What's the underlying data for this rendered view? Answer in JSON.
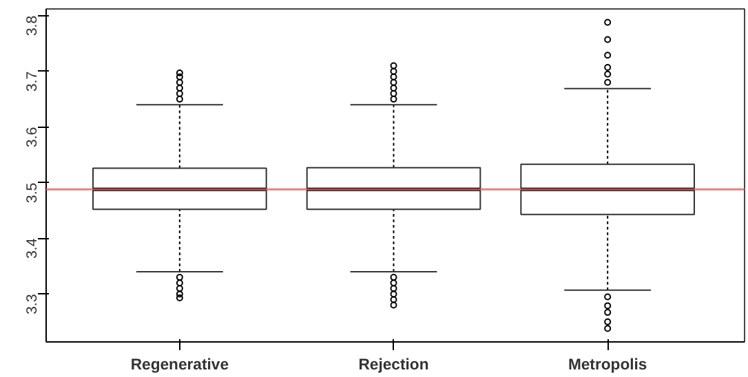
{
  "chart_data": {
    "type": "box",
    "categories": [
      "Regenerative",
      "Rejection",
      "Metropolis"
    ],
    "boxes": [
      {
        "low": 3.34,
        "q1": 3.452,
        "median": 3.488,
        "q3": 3.526,
        "high": 3.64,
        "outliers": [
          3.65,
          3.66,
          3.67,
          3.68,
          3.69,
          3.697,
          3.33,
          3.32,
          3.31,
          3.3,
          3.293
        ]
      },
      {
        "low": 3.34,
        "q1": 3.452,
        "median": 3.488,
        "q3": 3.527,
        "high": 3.64,
        "outliers": [
          3.65,
          3.66,
          3.67,
          3.68,
          3.69,
          3.7,
          3.71,
          3.33,
          3.32,
          3.31,
          3.3,
          3.29,
          3.28
        ]
      },
      {
        "low": 3.307,
        "q1": 3.443,
        "median": 3.488,
        "q3": 3.533,
        "high": 3.669,
        "outliers": [
          3.68,
          3.695,
          3.707,
          3.729,
          3.757,
          3.788,
          3.295,
          3.279,
          3.267,
          3.25,
          3.238
        ]
      }
    ],
    "ylim": [
      3.214,
      3.812
    ],
    "yticks": [
      3.3,
      3.4,
      3.5,
      3.6,
      3.7,
      3.8
    ],
    "ref_lines": [
      {
        "axis": "y",
        "value": 3.488,
        "color": "#e06060"
      }
    ],
    "grid": false
  }
}
